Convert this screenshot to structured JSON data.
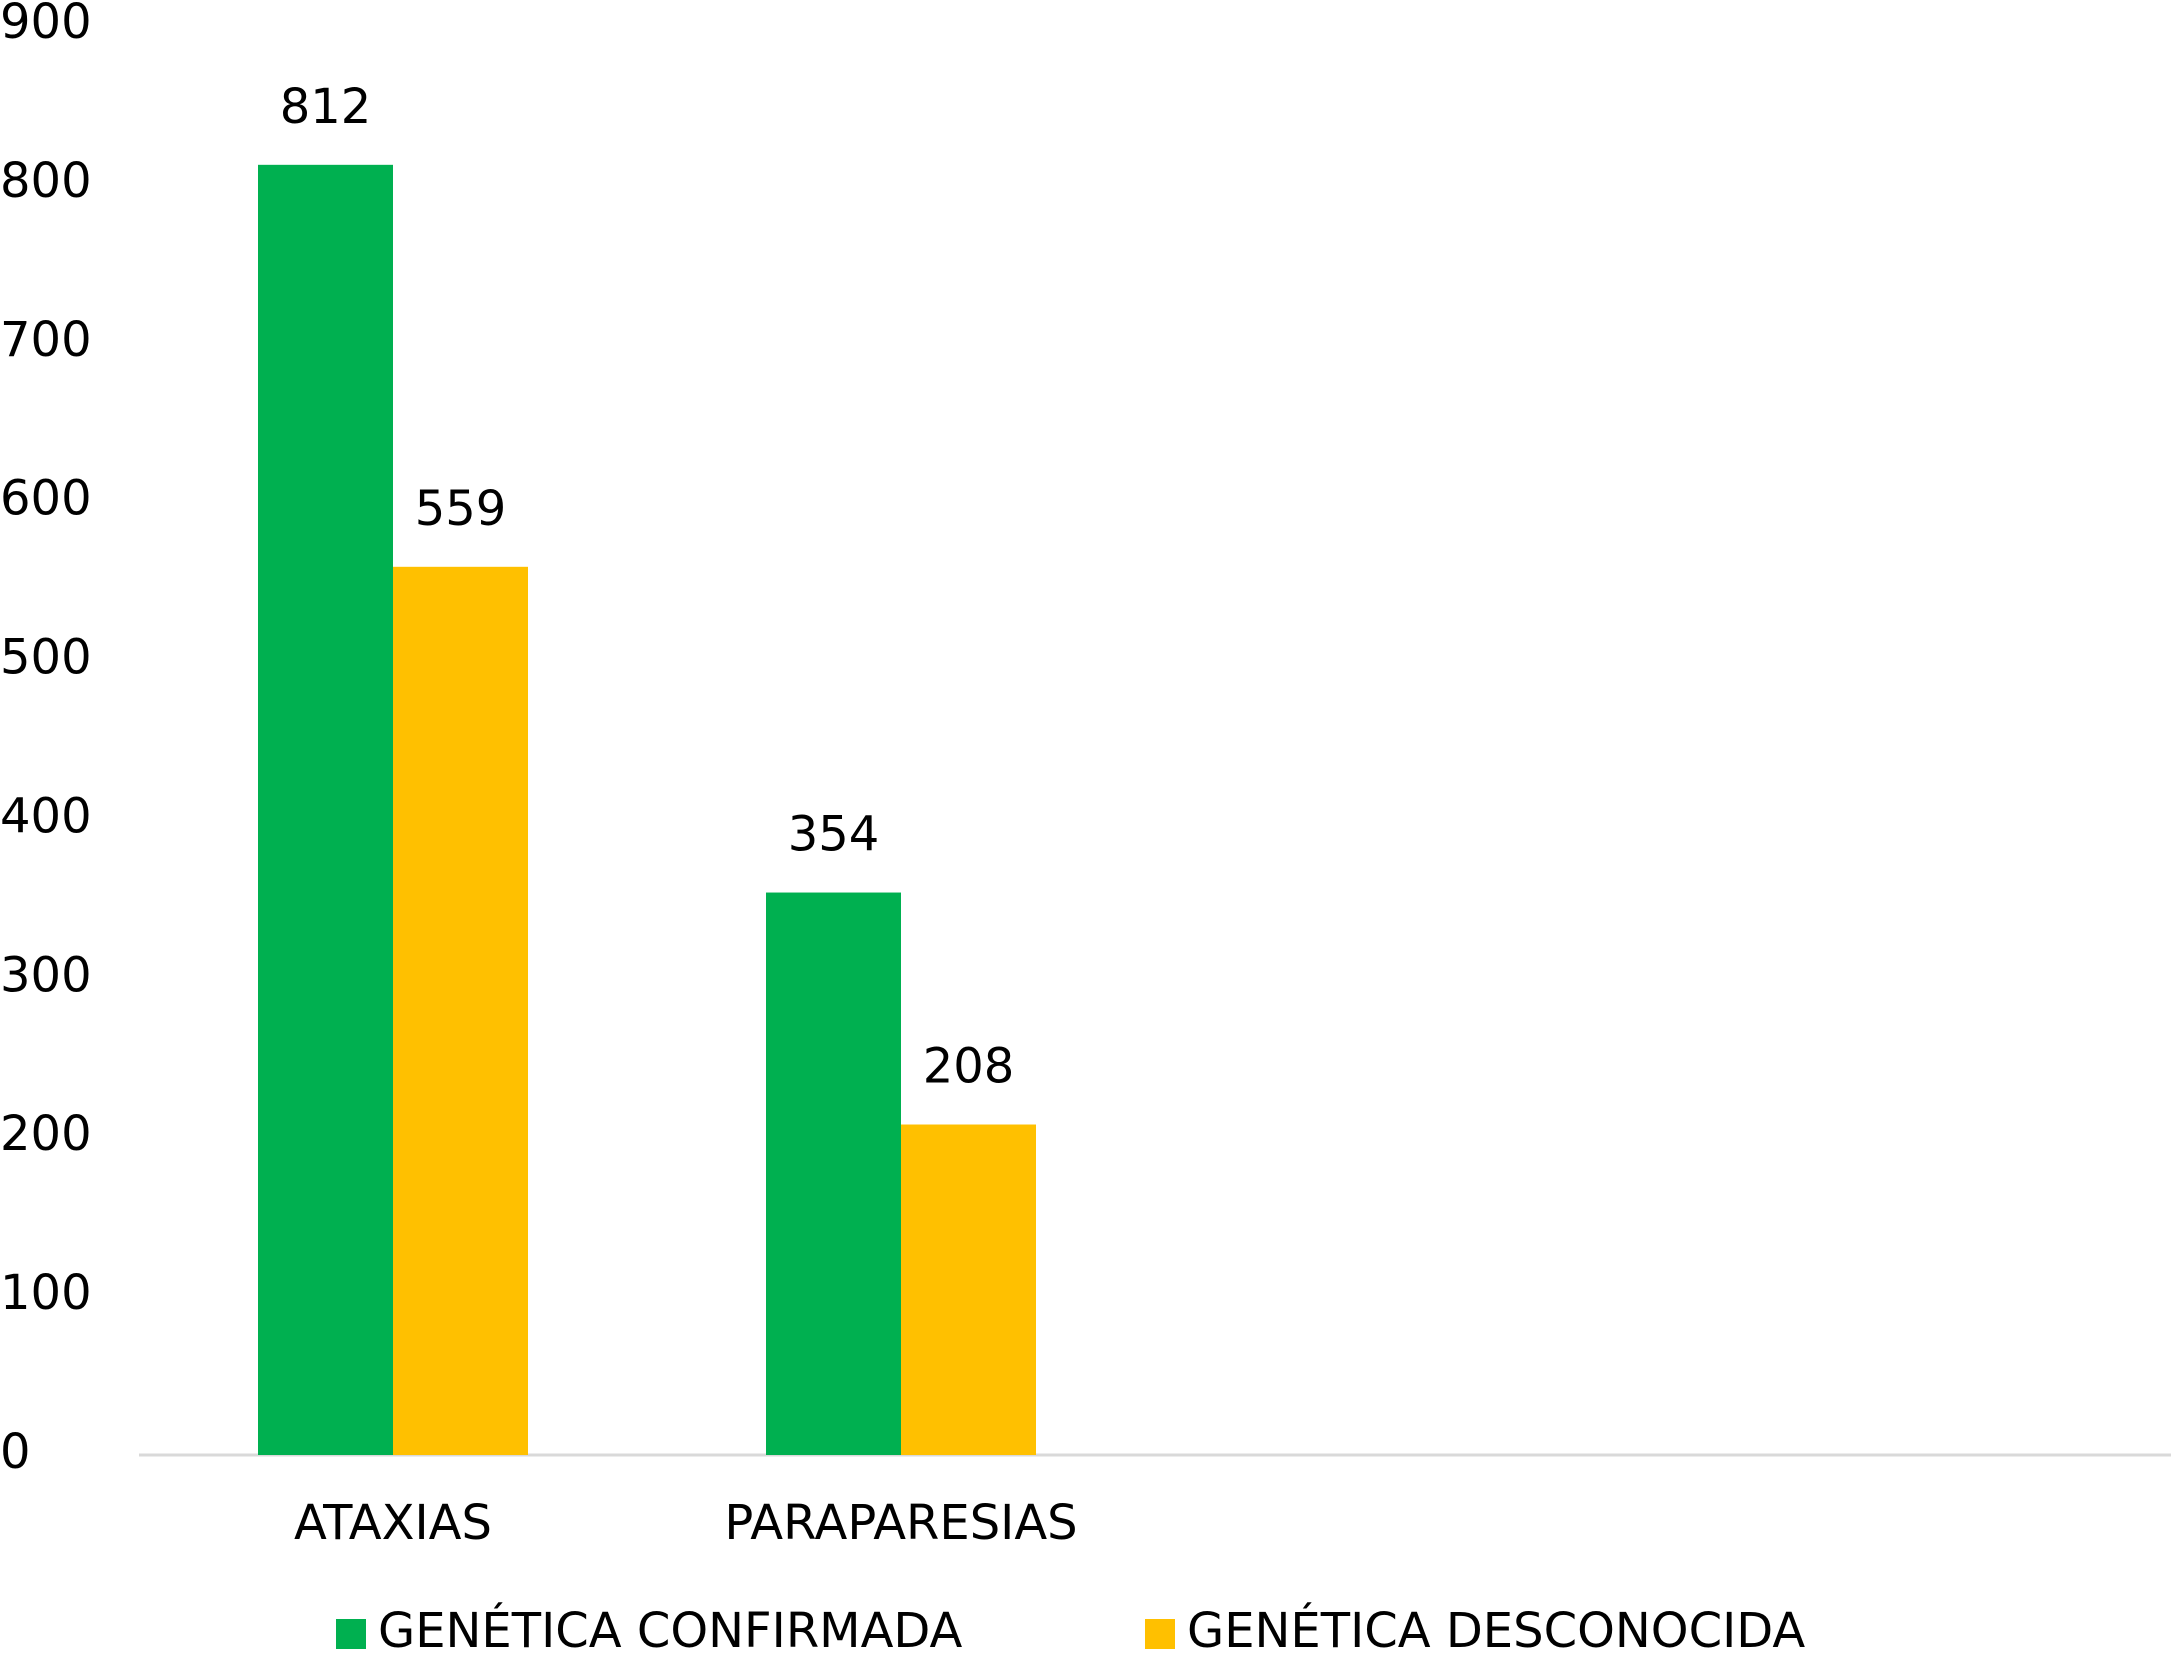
{
  "chart_data": {
    "type": "bar",
    "categories": [
      "ATAXIAS",
      "PARAPARESIAS",
      null,
      null
    ],
    "series": [
      {
        "name": "GENÉTICA CONFIRMADA",
        "color": "#00b050",
        "values": [
          812,
          354,
          null,
          null
        ]
      },
      {
        "name": "GENÉTICA DESCONOCIDA",
        "color": "#ffc000",
        "values": [
          559,
          208,
          null,
          null
        ]
      }
    ],
    "ylim": [
      0,
      900
    ],
    "yticks": [
      0,
      100,
      200,
      300,
      400,
      500,
      600,
      700,
      800,
      900
    ],
    "grid": false,
    "legend": "bottom",
    "data_labels": true
  }
}
